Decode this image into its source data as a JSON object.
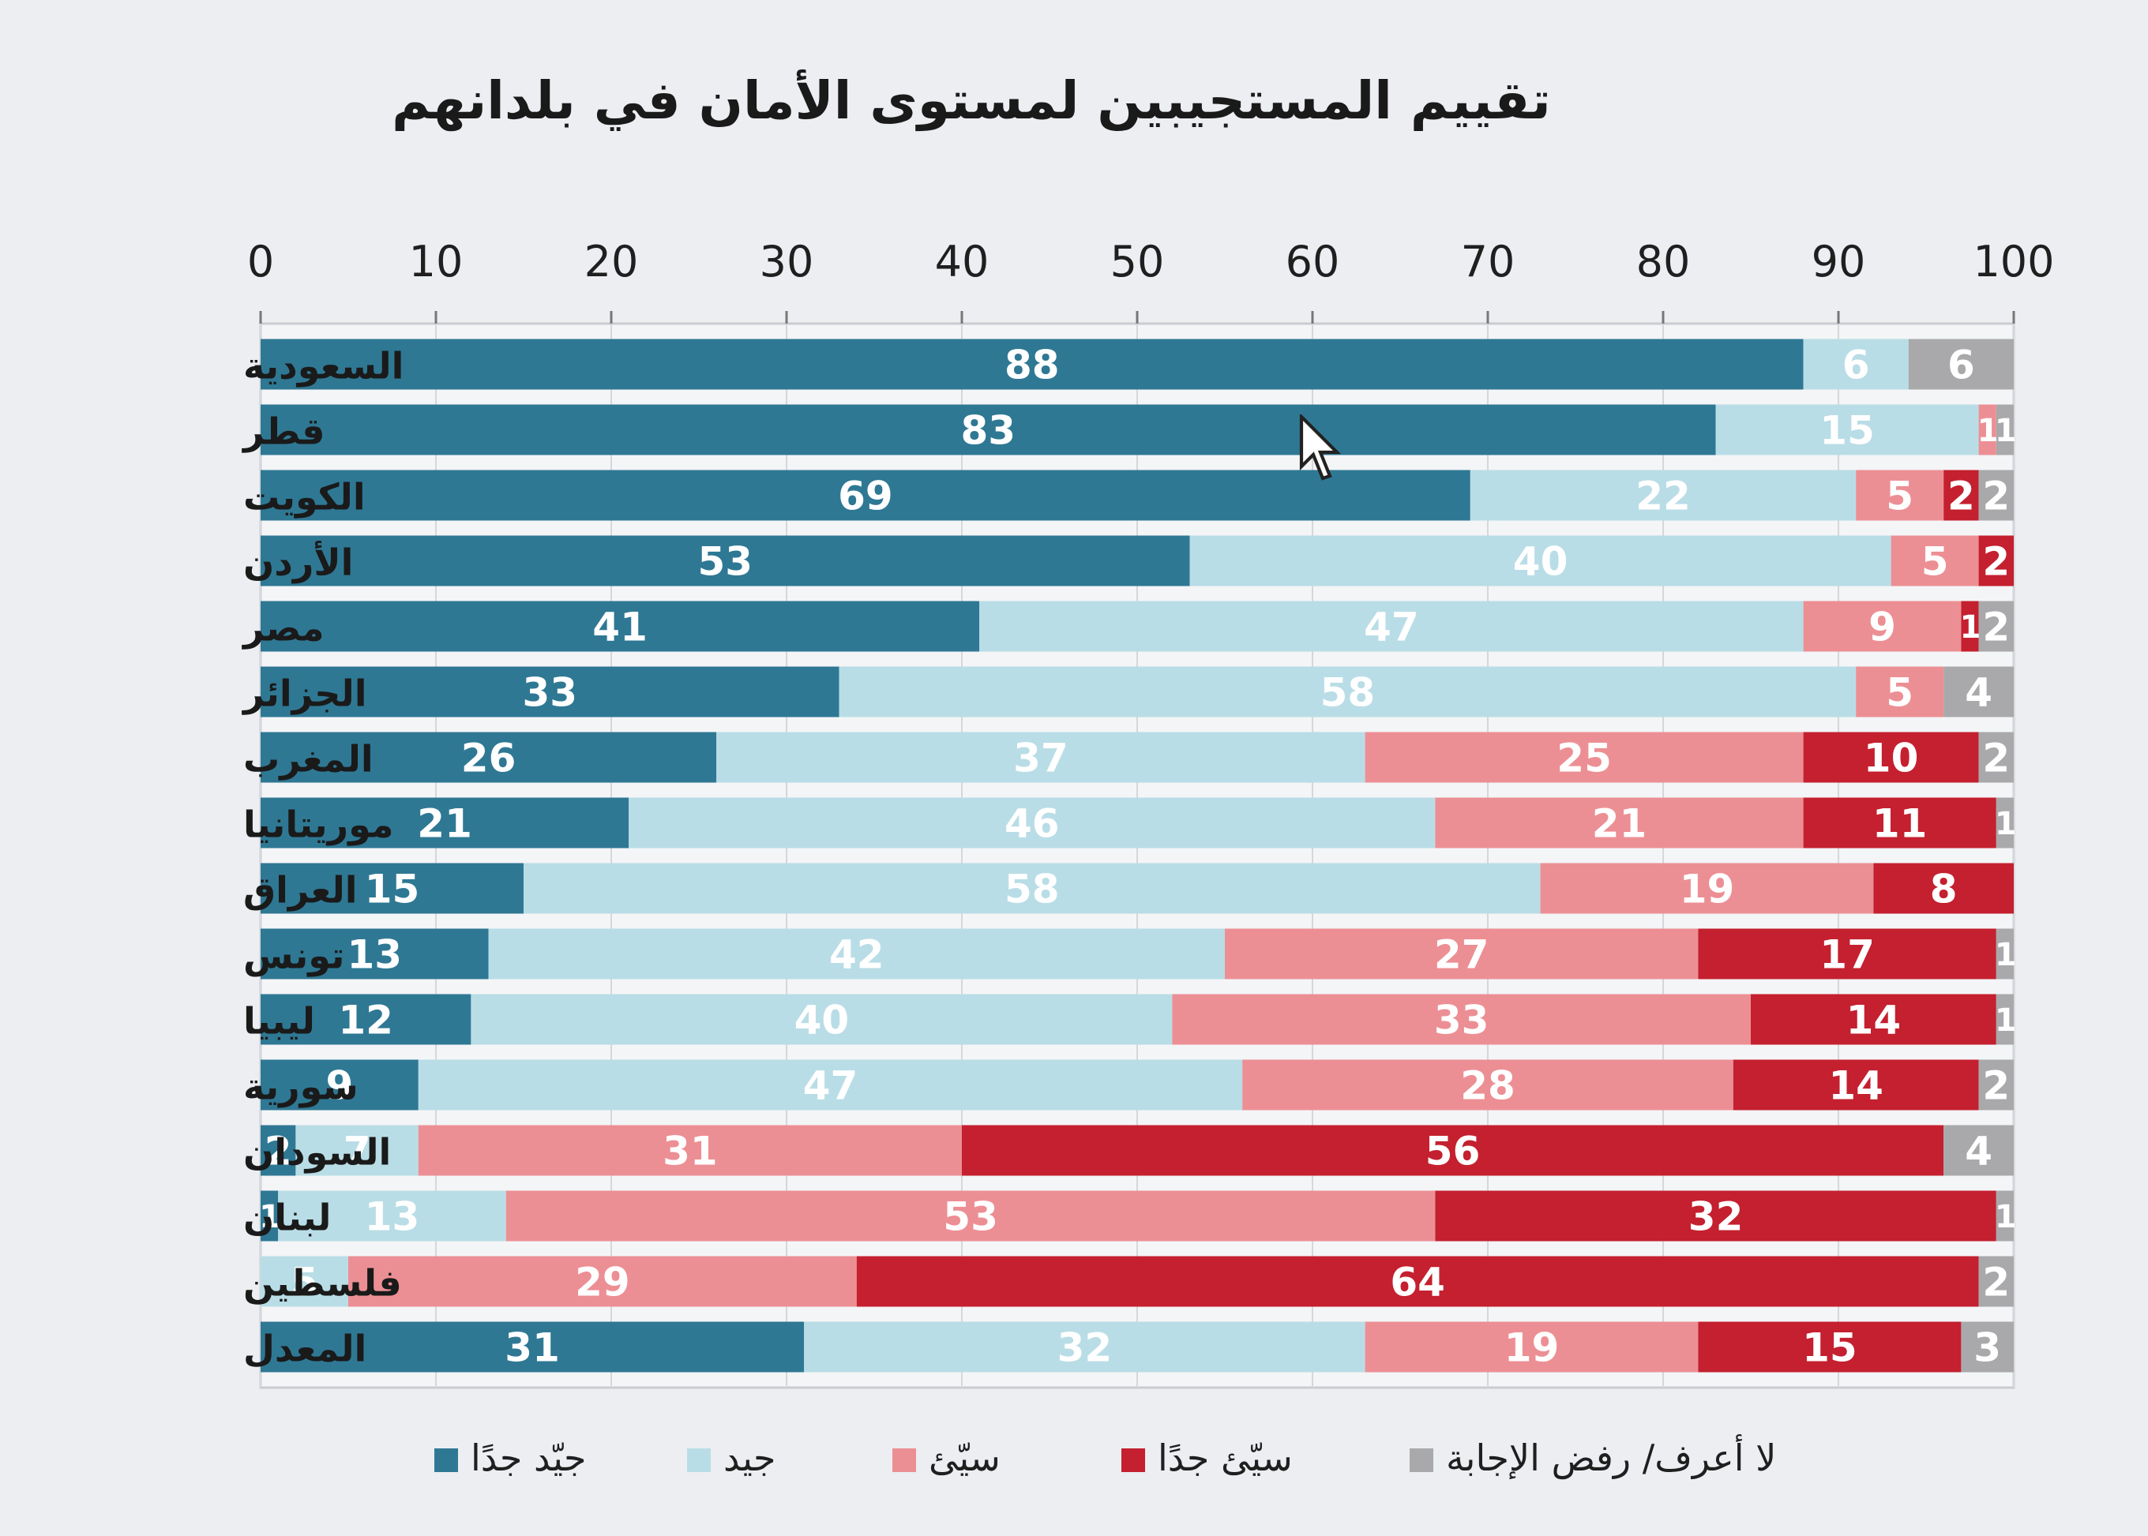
{
  "chart_data": {
    "type": "bar",
    "orientation": "horizontal-stacked",
    "title": "تقييم المستجيبين لمستوى الأمان في بلدانهم",
    "xlabel": "",
    "ylabel": "",
    "xlim": [
      0,
      100
    ],
    "x_ticks": [
      "0",
      "10",
      "20",
      "30",
      "40",
      "50",
      "60",
      "70",
      "80",
      "90",
      "100"
    ],
    "legend_position": "bottom",
    "categories": [
      "السعودية",
      "قطر",
      "الكويت",
      "الأردن",
      "مصر",
      "الجزائر",
      "المغرب",
      "موريتانيا",
      "العراق",
      "تونس",
      "ليبيا",
      "سورية",
      "السودان",
      "لبنان",
      "فلسطين",
      "المعدل"
    ],
    "series": [
      {
        "name": "جيّد جدًا",
        "color": "#2f7894",
        "label_color": "#ffffff",
        "values": [
          88,
          83,
          69,
          53,
          41,
          33,
          26,
          21,
          15,
          13,
          12,
          9,
          2,
          1,
          0,
          31
        ]
      },
      {
        "name": "جيد",
        "color": "#b9dde6",
        "label_color": "#ffffff",
        "values": [
          6,
          15,
          22,
          40,
          47,
          58,
          37,
          46,
          58,
          42,
          40,
          47,
          7,
          13,
          5,
          32
        ]
      },
      {
        "name": "سيّئ",
        "color": "#ec8f94",
        "label_color": "#ffffff",
        "values": [
          0,
          1,
          5,
          5,
          9,
          5,
          25,
          21,
          19,
          27,
          33,
          28,
          31,
          53,
          29,
          19
        ]
      },
      {
        "name": "سيّئ جدًا",
        "color": "#c4202f",
        "label_color": "#ffffff",
        "values": [
          0,
          0,
          2,
          2,
          1,
          0,
          10,
          11,
          8,
          17,
          14,
          14,
          56,
          32,
          64,
          15
        ]
      },
      {
        "name": "لا أعرف/ رفض الإجابة",
        "color": "#a9a9ab",
        "label_color": "#ffffff",
        "values": [
          6,
          1,
          2,
          0,
          2,
          4,
          2,
          1,
          0,
          1,
          1,
          2,
          4,
          1,
          2,
          3
        ]
      }
    ]
  }
}
